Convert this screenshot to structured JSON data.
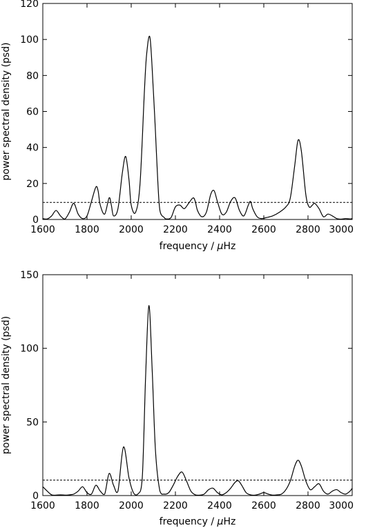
{
  "chart_data": [
    {
      "type": "line",
      "xlabel_prefix": "frequency / ",
      "xlabel_mu": "μ",
      "xlabel_unit": "Hz",
      "ylabel": "power spectral density (psd)",
      "xlim": [
        1600,
        3000
      ],
      "ylim": [
        0,
        120
      ],
      "xticks": [
        1600,
        1800,
        2000,
        2200,
        2400,
        2600,
        2800,
        3000
      ],
      "yticks": [
        0,
        20,
        40,
        60,
        80,
        100,
        120
      ],
      "threshold": 9.5,
      "grid": false,
      "series": [
        {
          "x": [
            1600,
            1620,
            1640,
            1660,
            1680,
            1700,
            1720,
            1740,
            1760,
            1780,
            1800,
            1820,
            1840,
            1850,
            1860,
            1880,
            1900,
            1910,
            1920,
            1940,
            1960,
            1975,
            1990,
            2000,
            2020,
            2040,
            2060,
            2070,
            2085,
            2100,
            2110,
            2120,
            2130,
            2150,
            2160,
            2180,
            2200,
            2220,
            2240,
            2260,
            2280,
            2290,
            2300,
            2320,
            2340,
            2360,
            2375,
            2390,
            2410,
            2430,
            2450,
            2470,
            2490,
            2510,
            2530,
            2540,
            2550,
            2570,
            2590,
            2610,
            2640,
            2670,
            2700,
            2720,
            2740,
            2755,
            2770,
            2790,
            2805,
            2820,
            2830,
            2850,
            2870,
            2890,
            2910,
            2930,
            2950,
            2970,
            2990,
            3000
          ],
          "y": [
            0.5,
            0.3,
            2,
            5,
            2,
            0.3,
            4,
            9,
            3,
            0.5,
            2,
            10,
            18,
            16,
            8,
            3,
            12,
            8,
            2,
            6,
            26,
            35,
            22,
            8,
            4,
            20,
            72,
            92,
            101,
            72,
            48,
            22,
            5,
            1,
            0.3,
            1,
            7,
            8,
            6,
            9,
            12,
            10,
            5,
            1.5,
            4,
            14,
            16,
            10,
            3,
            4,
            10,
            12,
            5,
            2,
            8,
            10,
            6,
            1.5,
            0.5,
            1,
            2,
            4,
            7,
            12,
            30,
            44,
            38,
            14,
            7,
            8,
            9,
            6,
            1.5,
            3,
            2,
            0.5,
            0.2,
            0.5,
            0.3,
            0.5
          ]
        }
      ]
    },
    {
      "type": "line",
      "xlabel_prefix": "frequency / ",
      "xlabel_mu": "μ",
      "xlabel_unit": "Hz",
      "ylabel": "power spectral density (psd)",
      "xlim": [
        1600,
        3000
      ],
      "ylim": [
        0,
        150
      ],
      "xticks": [
        1600,
        1800,
        2000,
        2200,
        2400,
        2600,
        2800,
        3000
      ],
      "yticks": [
        0,
        50,
        100,
        150
      ],
      "threshold": 10.5,
      "grid": false,
      "series": [
        {
          "x": [
            1600,
            1620,
            1640,
            1660,
            1680,
            1700,
            1720,
            1740,
            1760,
            1780,
            1800,
            1820,
            1840,
            1860,
            1880,
            1900,
            1920,
            1940,
            1965,
            1990,
            2010,
            2030,
            2050,
            2065,
            2080,
            2095,
            2110,
            2130,
            2150,
            2170,
            2190,
            2210,
            2230,
            2250,
            2270,
            2290,
            2310,
            2330,
            2350,
            2370,
            2390,
            2410,
            2430,
            2450,
            2470,
            2485,
            2500,
            2520,
            2540,
            2560,
            2580,
            2600,
            2620,
            2640,
            2660,
            2680,
            2700,
            2720,
            2740,
            2755,
            2770,
            2790,
            2810,
            2830,
            2850,
            2870,
            2890,
            2910,
            2930,
            2950,
            2970,
            2990,
            3000
          ],
          "y": [
            6,
            3,
            0.5,
            0.3,
            0.5,
            0.3,
            0.5,
            1,
            3,
            6,
            2,
            1,
            7,
            3,
            1,
            15,
            7,
            3,
            33,
            12,
            2,
            1,
            12,
            80,
            129,
            85,
            30,
            3,
            1,
            2,
            7,
            13,
            16,
            10,
            3,
            0.5,
            0.3,
            1,
            4,
            5,
            2,
            0.5,
            2,
            5,
            9,
            10,
            7,
            2,
            0.5,
            0.3,
            1,
            2,
            1,
            0.3,
            0.5,
            1,
            4,
            10,
            20,
            24,
            20,
            10,
            4,
            6,
            8,
            3,
            1,
            3,
            4,
            2,
            1,
            3,
            5
          ]
        }
      ]
    }
  ]
}
